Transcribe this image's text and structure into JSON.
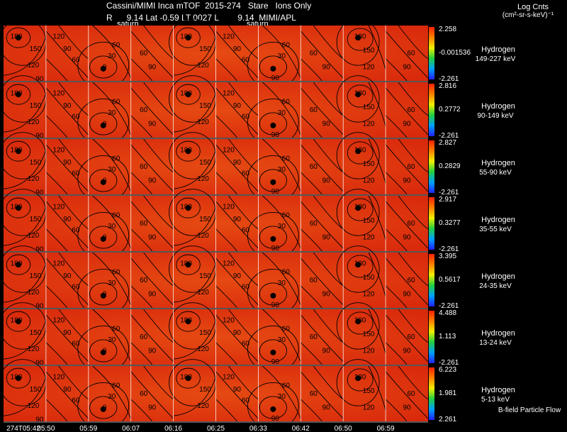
{
  "header": {
    "title": "Cassini/MIMI Inca mTOF  2015-274   Stare   Ions Only",
    "subtitle": "R      9.14 Lat -0.59 LT 0027 L        9.14  MIMI/APL",
    "saturn_left": "saturn",
    "saturn_right": "saturn",
    "log_counts": "Log Cnts",
    "units": "(cm²-sr-s-keV)⁻¹"
  },
  "legend_footer": "B-field Particle Flow",
  "colors": {
    "background": "#000000",
    "panel_fill": "#e83a10",
    "contour": "#000000",
    "grid": "#ffffff"
  },
  "chart_data": {
    "type": "heatmap",
    "time_ticks": [
      "274T05:42",
      "05:50",
      "05:59",
      "06:07",
      "06:16",
      "06:25",
      "06:33",
      "06:42",
      "06:50",
      "06:59"
    ],
    "contour_labels": [
      "180",
      "150",
      "120",
      "90",
      "60",
      "30",
      "0"
    ],
    "panels": [
      {
        "species": "Hydrogen",
        "energy": "149-227 keV",
        "cmax": "2.258",
        "cmid": "-0.001536",
        "cmin": "-2.261"
      },
      {
        "species": "Hydrogen",
        "energy": "90-149 keV",
        "cmax": "2.816",
        "cmid": "0.2772",
        "cmin": "-2.261"
      },
      {
        "species": "Hydrogen",
        "energy": "55-90 keV",
        "cmax": "2.827",
        "cmid": "0.2829",
        "cmin": "-2.261"
      },
      {
        "species": "Hydrogen",
        "energy": "35-55 keV",
        "cmax": "2.917",
        "cmid": "0.3277",
        "cmin": "-2.261"
      },
      {
        "species": "Hydrogen",
        "energy": "24-35 keV",
        "cmax": "3.395",
        "cmid": "0.5617",
        "cmin": "-2.261"
      },
      {
        "species": "Hydrogen",
        "energy": "13-24 keV",
        "cmax": "4.488",
        "cmid": "1.113",
        "cmin": "-2.261"
      },
      {
        "species": "Hydrogen",
        "energy": "5-13 keV",
        "cmax": "6.223",
        "cmid": "1.981",
        "cmin": "2.261"
      }
    ]
  }
}
